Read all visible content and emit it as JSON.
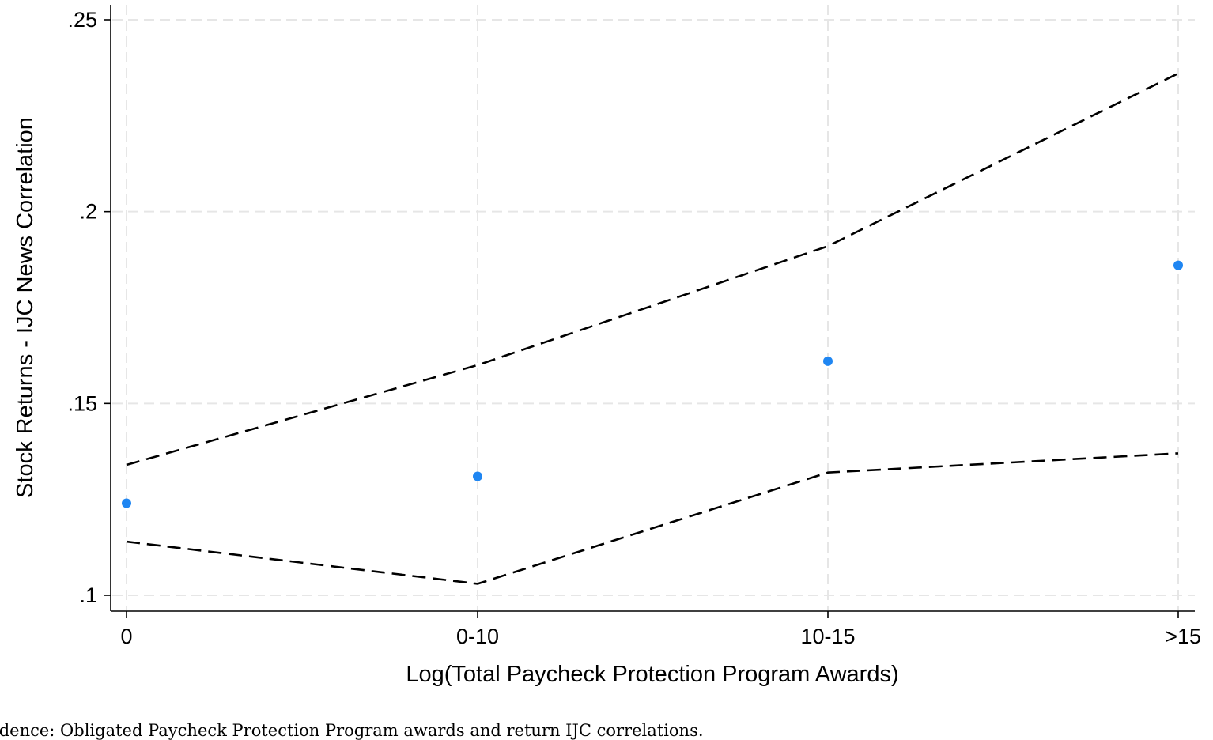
{
  "chart_data": {
    "type": "scatter",
    "title": "",
    "xlabel": "Log(Total Paycheck Protection Program Awards)",
    "ylabel": "Stock Returns - IJC News Correlation",
    "categories": [
      "0",
      "0-10",
      "10-15",
      ">15"
    ],
    "ylim": [
      0.1,
      0.25
    ],
    "yticks": [
      {
        "value": 0.1,
        "label": ".1"
      },
      {
        "value": 0.15,
        "label": ".15"
      },
      {
        "value": 0.2,
        "label": ".2"
      },
      {
        "value": 0.25,
        "label": ".25"
      }
    ],
    "grid": true,
    "legend": "none",
    "series": [
      {
        "kind": "points",
        "color": "#1f86f2",
        "values": [
          0.124,
          0.131,
          0.161,
          0.186
        ]
      },
      {
        "kind": "dashed-line",
        "color": "#000000",
        "values": [
          0.134,
          0.16,
          0.191,
          0.236
        ]
      },
      {
        "kind": "dashed-line",
        "color": "#000000",
        "values": [
          0.114,
          0.103,
          0.132,
          0.137
        ]
      }
    ]
  },
  "caption": "idence: Obligated Paycheck Protection Program awards and return IJC correlations."
}
